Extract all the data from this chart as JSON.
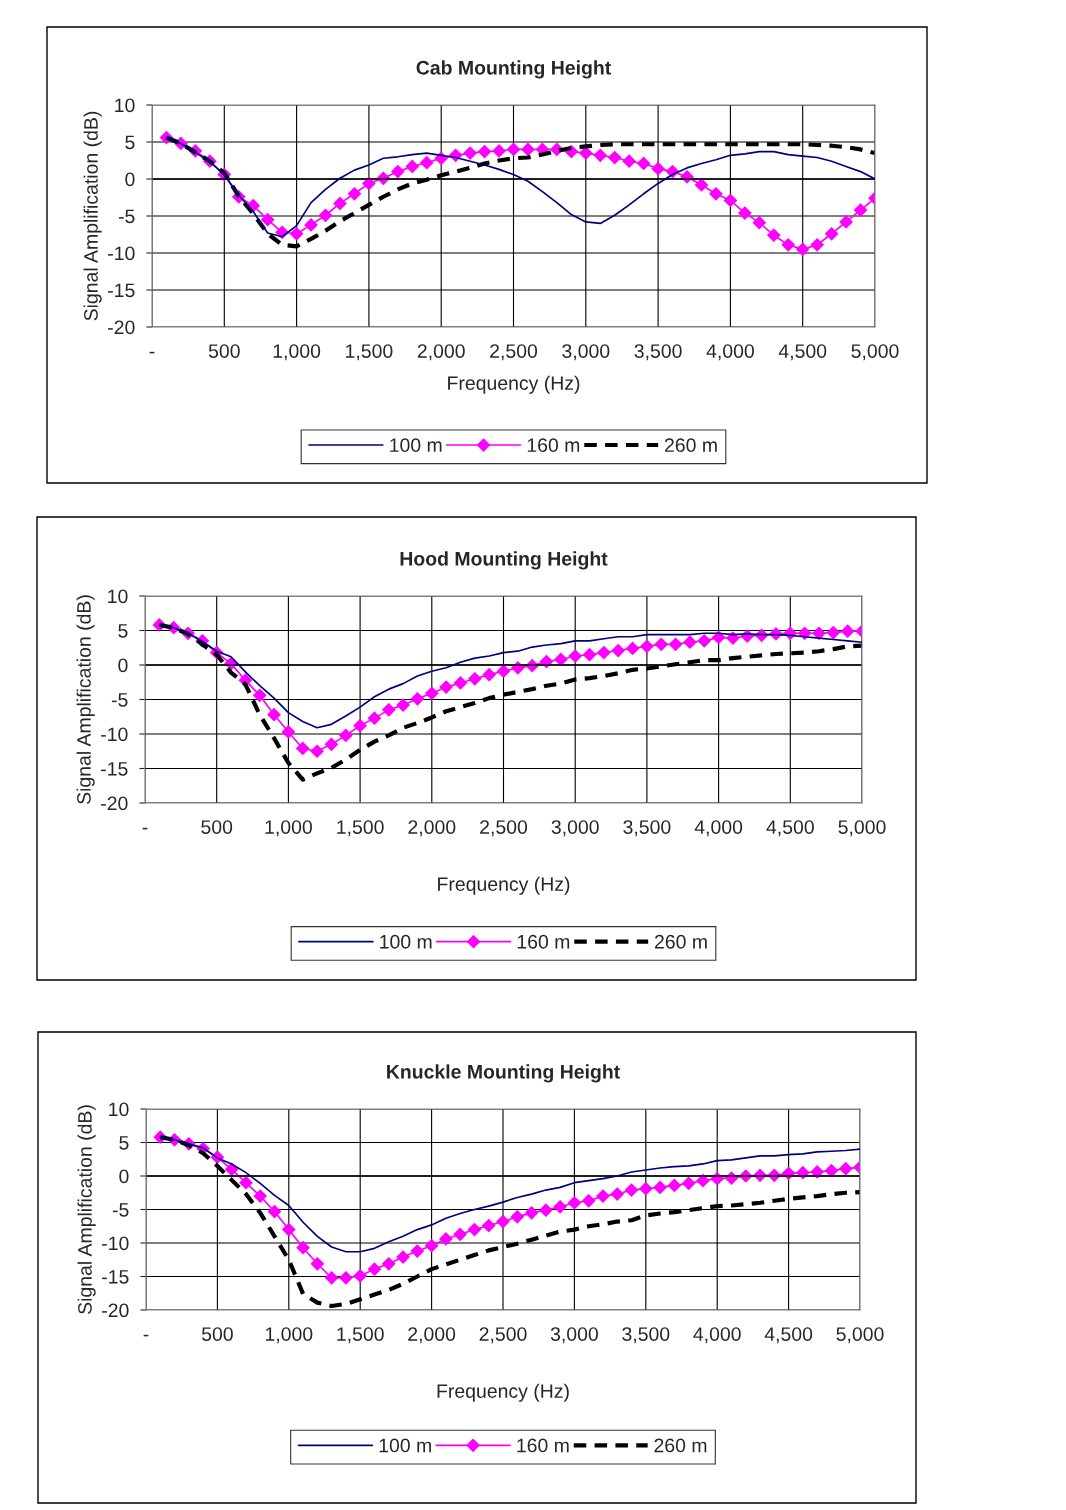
{
  "chart_data": [
    {
      "type": "line",
      "title": "Cab Mounting Height",
      "xlabel": "Frequency (Hz)",
      "ylabel": "Signal Amplification (dB)",
      "x": [
        100,
        200,
        300,
        400,
        500,
        600,
        700,
        800,
        900,
        1000,
        1100,
        1200,
        1300,
        1400,
        1500,
        1600,
        1700,
        1800,
        1900,
        2000,
        2100,
        2200,
        2300,
        2400,
        2500,
        2600,
        2700,
        2800,
        2900,
        3000,
        3100,
        3200,
        3300,
        3400,
        3500,
        3600,
        3700,
        3800,
        3900,
        4000,
        4100,
        4200,
        4300,
        4400,
        4500,
        4600,
        4700,
        4800,
        4900,
        5000
      ],
      "xlim": [
        0,
        5000
      ],
      "xticks": [
        {
          "value": 0,
          "label": "-"
        },
        500,
        {
          "value": 1000,
          "label": "1,000"
        },
        {
          "value": 1500,
          "label": "1,500"
        },
        {
          "value": 2000,
          "label": "2,000"
        },
        {
          "value": 2500,
          "label": "2,500"
        },
        {
          "value": 3000,
          "label": "3,000"
        },
        {
          "value": 3500,
          "label": "3,500"
        },
        {
          "value": 4000,
          "label": "4,000"
        },
        {
          "value": 4500,
          "label": "4,500"
        },
        {
          "value": 5000,
          "label": "5,000"
        }
      ],
      "ylim": [
        -20,
        10
      ],
      "yticks": [
        -20,
        -15,
        -10,
        -5,
        0,
        5,
        10
      ],
      "grid": true,
      "legend": "bottom",
      "series": [
        {
          "name": "100 m",
          "color": "#000080",
          "marker": "none",
          "line_style": "solid",
          "values": [
            5.6,
            4.8,
            3.6,
            2.3,
            0.6,
            -2.2,
            -4.4,
            -7.3,
            -7.8,
            -6.3,
            -3.2,
            -1.4,
            0.1,
            1.2,
            1.9,
            2.8,
            3.0,
            3.3,
            3.5,
            3.2,
            2.9,
            2.4,
            1.9,
            1.3,
            0.6,
            -0.3,
            -1.7,
            -3.2,
            -4.8,
            -5.8,
            -6.0,
            -4.9,
            -3.5,
            -2.0,
            -0.6,
            0.6,
            1.5,
            2.1,
            2.6,
            3.2,
            3.4,
            3.7,
            3.7,
            3.3,
            3.1,
            2.9,
            2.4,
            1.7,
            1.0,
            0.0
          ]
        },
        {
          "name": "160 m",
          "color": "#ff00ff",
          "marker": "diamond",
          "line_style": "solid",
          "values": [
            5.6,
            4.8,
            3.8,
            2.4,
            0.6,
            -2.4,
            -3.6,
            -5.5,
            -7.2,
            -7.4,
            -6.2,
            -4.9,
            -3.3,
            -2.0,
            -0.6,
            0.1,
            1.0,
            1.7,
            2.2,
            2.8,
            3.2,
            3.5,
            3.7,
            3.8,
            4.0,
            4.0,
            4.0,
            4.0,
            3.7,
            3.5,
            3.2,
            2.9,
            2.4,
            2.1,
            1.4,
            1.0,
            0.3,
            -0.8,
            -2.0,
            -2.9,
            -4.6,
            -5.9,
            -7.6,
            -8.9,
            -9.5,
            -8.9,
            -7.4,
            -5.8,
            -4.2,
            -2.6
          ]
        },
        {
          "name": "260 m",
          "color": "#000000",
          "marker": "none",
          "line_style": "dashed",
          "values": [
            5.6,
            4.8,
            3.6,
            2.4,
            0.8,
            -2.3,
            -4.7,
            -7.4,
            -8.9,
            -9.1,
            -8.1,
            -7.0,
            -5.7,
            -4.6,
            -3.5,
            -2.4,
            -1.4,
            -0.6,
            -0.1,
            0.5,
            1.0,
            1.5,
            2.1,
            2.5,
            2.8,
            2.9,
            3.3,
            3.8,
            4.2,
            4.4,
            4.6,
            4.7,
            4.7,
            4.7,
            4.7,
            4.7,
            4.7,
            4.7,
            4.7,
            4.7,
            4.7,
            4.7,
            4.7,
            4.7,
            4.7,
            4.6,
            4.5,
            4.3,
            4.0,
            3.5
          ]
        }
      ]
    },
    {
      "type": "line",
      "title": "Hood Mounting Height",
      "xlabel": "Frequency (Hz)",
      "ylabel": "Signal Amplification (dB)",
      "x": [
        100,
        200,
        300,
        400,
        500,
        600,
        700,
        800,
        900,
        1000,
        1100,
        1200,
        1300,
        1400,
        1500,
        1600,
        1700,
        1800,
        1900,
        2000,
        2100,
        2200,
        2300,
        2400,
        2500,
        2600,
        2700,
        2800,
        2900,
        3000,
        3100,
        3200,
        3300,
        3400,
        3500,
        3600,
        3700,
        3800,
        3900,
        4000,
        4100,
        4200,
        4300,
        4400,
        4500,
        4600,
        4700,
        4800,
        4900,
        5000
      ],
      "xlim": [
        0,
        5000
      ],
      "xticks": [
        {
          "value": 0,
          "label": "-"
        },
        500,
        {
          "value": 1000,
          "label": "1,000"
        },
        {
          "value": 1500,
          "label": "1,500"
        },
        {
          "value": 2000,
          "label": "2,000"
        },
        {
          "value": 2500,
          "label": "2,500"
        },
        {
          "value": 3000,
          "label": "3,000"
        },
        {
          "value": 3500,
          "label": "3,500"
        },
        {
          "value": 4000,
          "label": "4,000"
        },
        {
          "value": 4500,
          "label": "4,500"
        },
        {
          "value": 5000,
          "label": "5,000"
        }
      ],
      "ylim": [
        -20,
        10
      ],
      "yticks": [
        -20,
        -15,
        -10,
        -5,
        0,
        5,
        10
      ],
      "grid": true,
      "legend": "bottom",
      "series": [
        {
          "name": "100 m",
          "color": "#000080",
          "marker": "none",
          "line_style": "solid",
          "values": [
            5.8,
            5.4,
            4.6,
            3.4,
            2.0,
            1.2,
            -1.0,
            -3.0,
            -4.8,
            -6.9,
            -8.2,
            -9.1,
            -8.6,
            -7.4,
            -6.1,
            -4.6,
            -3.5,
            -2.7,
            -1.6,
            -0.9,
            -0.4,
            0.4,
            1.0,
            1.3,
            1.8,
            2.0,
            2.6,
            2.9,
            3.1,
            3.5,
            3.5,
            3.8,
            4.1,
            4.1,
            4.4,
            4.4,
            4.4,
            4.4,
            4.6,
            4.6,
            4.4,
            4.5,
            4.4,
            4.4,
            4.3,
            4.1,
            3.9,
            3.7,
            3.5,
            3.3
          ]
        },
        {
          "name": "160 m",
          "color": "#ff00ff",
          "marker": "diamond",
          "line_style": "solid",
          "values": [
            5.8,
            5.4,
            4.6,
            3.5,
            1.8,
            0.2,
            -2.2,
            -4.4,
            -7.2,
            -9.7,
            -12.1,
            -12.5,
            -11.5,
            -10.2,
            -8.8,
            -7.7,
            -6.5,
            -5.8,
            -4.9,
            -4.1,
            -3.2,
            -2.6,
            -2.0,
            -1.4,
            -0.9,
            -0.4,
            -0.1,
            0.5,
            0.8,
            1.3,
            1.5,
            1.8,
            2.1,
            2.4,
            2.7,
            3.0,
            3.0,
            3.3,
            3.5,
            4.0,
            3.9,
            4.2,
            4.3,
            4.5,
            4.6,
            4.6,
            4.6,
            4.7,
            4.9,
            4.9
          ]
        },
        {
          "name": "260 m",
          "color": "#000000",
          "marker": "none",
          "line_style": "dashed",
          "values": [
            5.8,
            5.4,
            4.5,
            3.0,
            1.5,
            -1.1,
            -2.8,
            -7.2,
            -10.6,
            -14.2,
            -16.6,
            -15.7,
            -14.9,
            -13.7,
            -12.3,
            -11.1,
            -10.2,
            -9.1,
            -8.4,
            -7.6,
            -6.7,
            -6.1,
            -5.5,
            -4.8,
            -4.3,
            -3.9,
            -3.5,
            -3.0,
            -2.7,
            -2.1,
            -1.9,
            -1.6,
            -1.2,
            -0.7,
            -0.5,
            -0.2,
            0.1,
            0.4,
            0.7,
            0.7,
            1.0,
            1.2,
            1.4,
            1.6,
            1.7,
            1.8,
            2.0,
            2.3,
            2.7,
            2.8
          ]
        }
      ]
    },
    {
      "type": "line",
      "title": "Knuckle Mounting Height",
      "xlabel": "Frequency (Hz)",
      "ylabel": "Signal Amplification (dB)",
      "x": [
        100,
        200,
        300,
        400,
        500,
        600,
        700,
        800,
        900,
        1000,
        1100,
        1200,
        1300,
        1400,
        1500,
        1600,
        1700,
        1800,
        1900,
        2000,
        2100,
        2200,
        2300,
        2400,
        2500,
        2600,
        2700,
        2800,
        2900,
        3000,
        3100,
        3200,
        3300,
        3400,
        3500,
        3600,
        3700,
        3800,
        3900,
        4000,
        4100,
        4200,
        4300,
        4400,
        4500,
        4600,
        4700,
        4800,
        4900,
        5000
      ],
      "xlim": [
        0,
        5000
      ],
      "xticks": [
        {
          "value": 0,
          "label": "-"
        },
        500,
        {
          "value": 1000,
          "label": "1,000"
        },
        {
          "value": 1500,
          "label": "1,500"
        },
        {
          "value": 2000,
          "label": "2,000"
        },
        {
          "value": 2500,
          "label": "2,500"
        },
        {
          "value": 3000,
          "label": "3,000"
        },
        {
          "value": 3500,
          "label": "3,500"
        },
        {
          "value": 4000,
          "label": "4,000"
        },
        {
          "value": 4500,
          "label": "4,500"
        },
        {
          "value": 5000,
          "label": "5,000"
        }
      ],
      "ylim": [
        -20,
        10
      ],
      "yticks": [
        -20,
        -15,
        -10,
        -5,
        0,
        5,
        10
      ],
      "grid": true,
      "legend": "bottom",
      "series": [
        {
          "name": "100 m",
          "color": "#000080",
          "marker": "none",
          "line_style": "solid",
          "values": [
            5.8,
            5.4,
            4.8,
            4.2,
            2.7,
            1.8,
            0.5,
            -1.1,
            -2.9,
            -4.4,
            -6.9,
            -9.0,
            -10.6,
            -11.3,
            -11.3,
            -10.8,
            -9.8,
            -9.0,
            -8.0,
            -7.3,
            -6.3,
            -5.6,
            -5.0,
            -4.5,
            -3.9,
            -3.2,
            -2.7,
            -2.1,
            -1.7,
            -1.0,
            -0.7,
            -0.4,
            0.0,
            0.6,
            0.9,
            1.2,
            1.4,
            1.5,
            1.8,
            2.3,
            2.4,
            2.7,
            3.0,
            3.0,
            3.2,
            3.3,
            3.6,
            3.7,
            3.8,
            4.0
          ]
        },
        {
          "name": "160 m",
          "color": "#ff00ff",
          "marker": "diamond",
          "line_style": "solid",
          "values": [
            5.8,
            5.4,
            4.8,
            4.1,
            2.8,
            1.0,
            -1.0,
            -3.0,
            -5.3,
            -8.0,
            -10.7,
            -13.1,
            -15.2,
            -15.2,
            -14.9,
            -13.9,
            -13.1,
            -12.1,
            -11.2,
            -10.4,
            -9.4,
            -8.7,
            -8.0,
            -7.4,
            -6.8,
            -6.1,
            -5.5,
            -5.1,
            -4.6,
            -4.0,
            -3.7,
            -3.0,
            -2.7,
            -2.1,
            -1.9,
            -1.7,
            -1.4,
            -1.1,
            -0.7,
            -0.4,
            -0.3,
            0.0,
            0.1,
            0.1,
            0.4,
            0.5,
            0.6,
            0.8,
            1.1,
            1.3
          ]
        },
        {
          "name": "260 m",
          "color": "#000000",
          "marker": "none",
          "line_style": "dashed",
          "values": [
            5.8,
            5.4,
            4.6,
            3.4,
            1.5,
            -0.6,
            -2.7,
            -5.5,
            -9.0,
            -12.5,
            -17.6,
            -18.9,
            -19.4,
            -19.1,
            -18.4,
            -17.7,
            -17.0,
            -16.1,
            -15.0,
            -13.9,
            -13.2,
            -12.5,
            -11.8,
            -11.1,
            -10.6,
            -10.1,
            -9.5,
            -8.9,
            -8.3,
            -8.0,
            -7.5,
            -7.2,
            -6.8,
            -6.6,
            -5.9,
            -5.6,
            -5.4,
            -5.1,
            -4.8,
            -4.5,
            -4.4,
            -4.2,
            -4.0,
            -3.7,
            -3.4,
            -3.2,
            -3.0,
            -2.7,
            -2.5,
            -2.4
          ]
        }
      ]
    }
  ]
}
